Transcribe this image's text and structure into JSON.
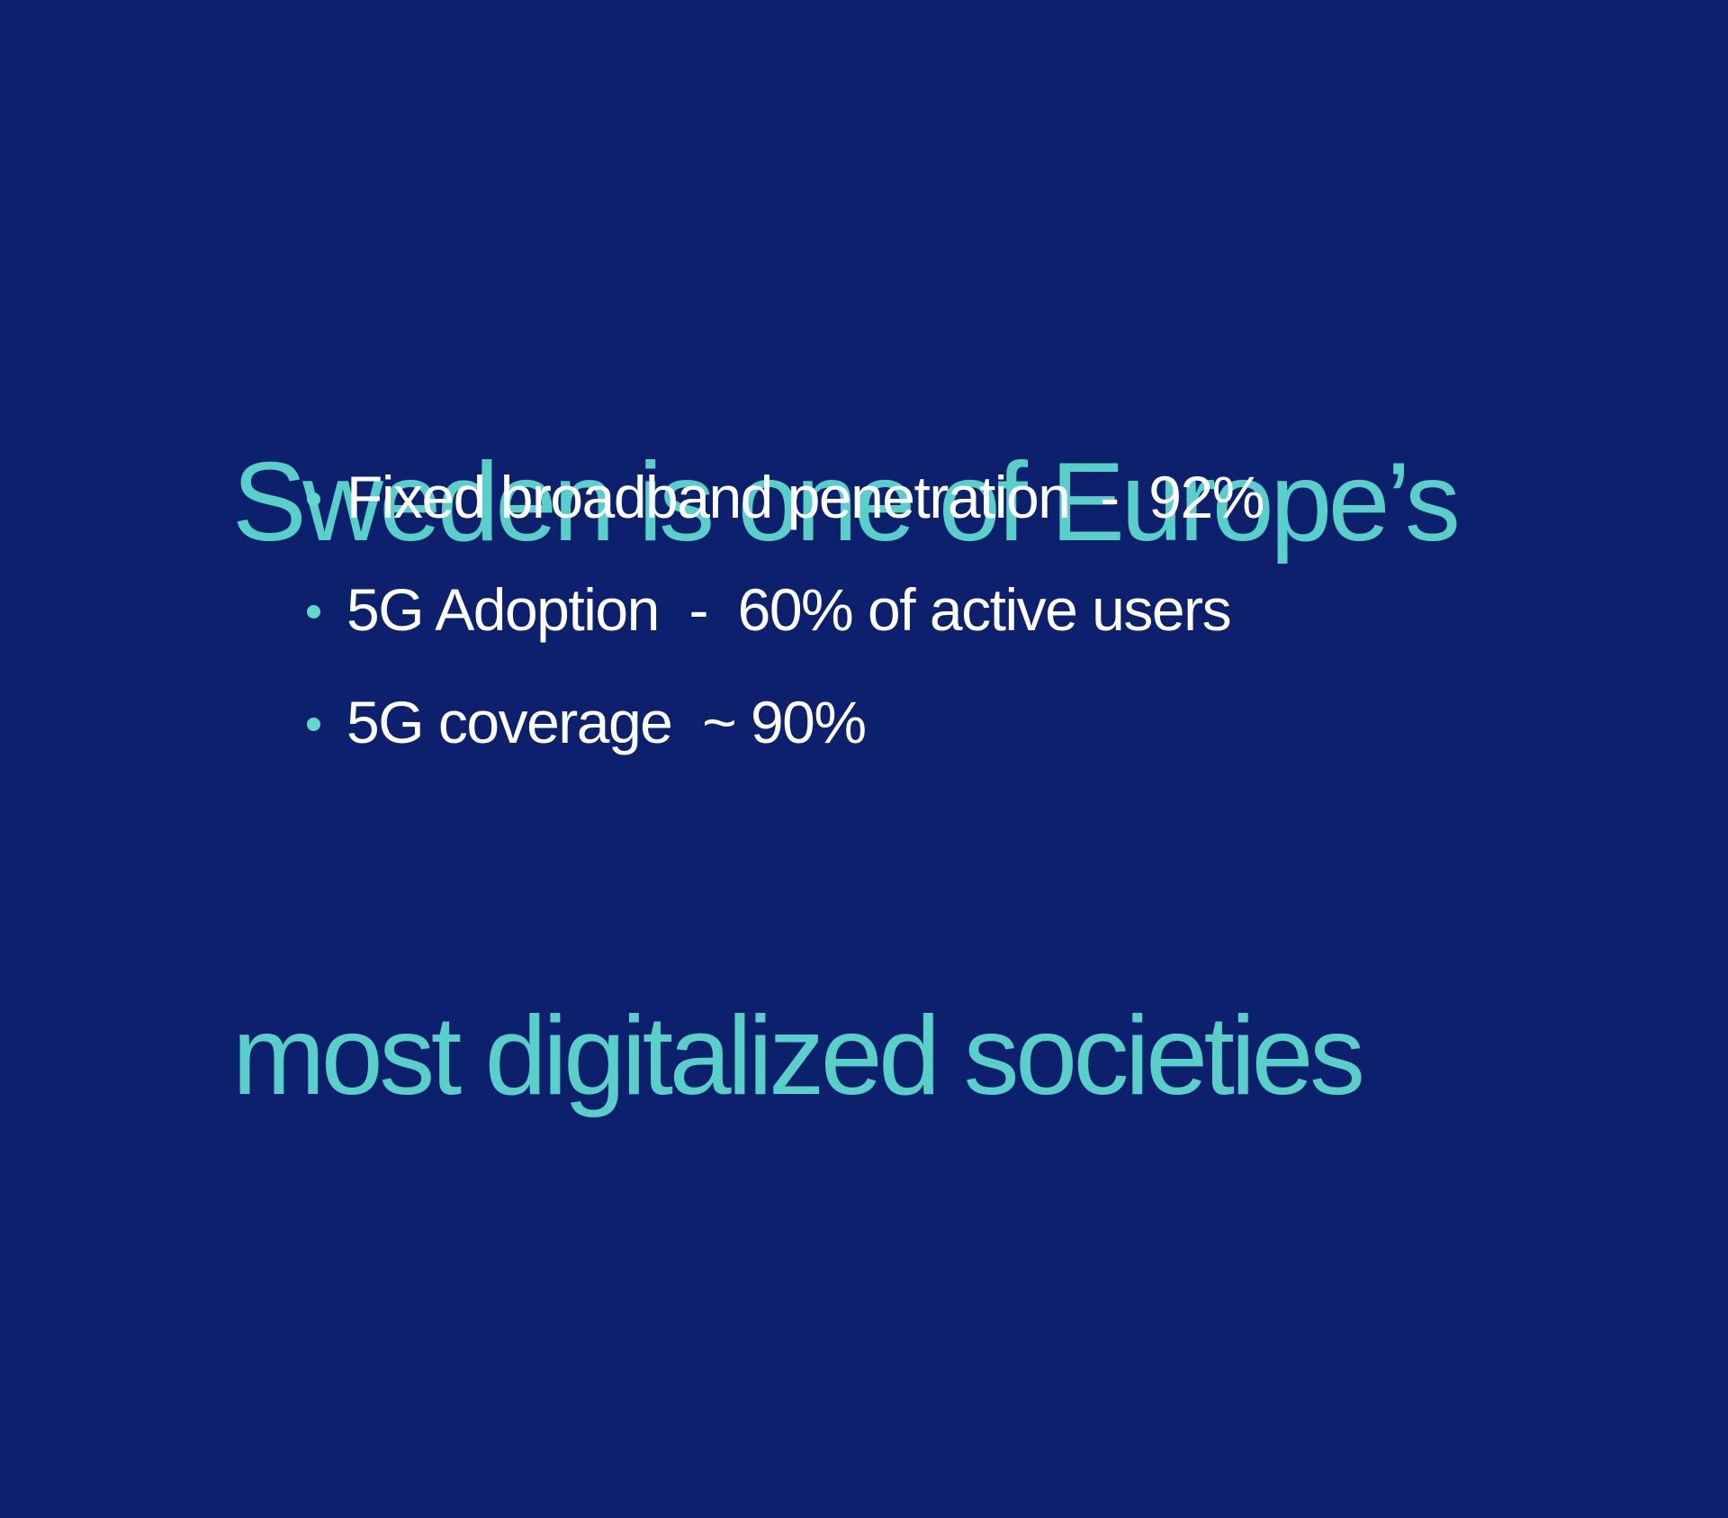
{
  "slide": {
    "background_color": "#0D206E",
    "title": {
      "color": "#58CFC8",
      "line1": "Sweden is one of Europe’s",
      "line2": "most digitalized societies"
    },
    "bullets": {
      "marker_shape": "dot",
      "marker_color": "#5FD9CB",
      "text_color": "#FFFFFF",
      "items": [
        "Fixed broadband penetration  -  92%",
        "5G Adoption  -  60% of active users",
        "5G coverage  ~ 90%"
      ]
    }
  }
}
